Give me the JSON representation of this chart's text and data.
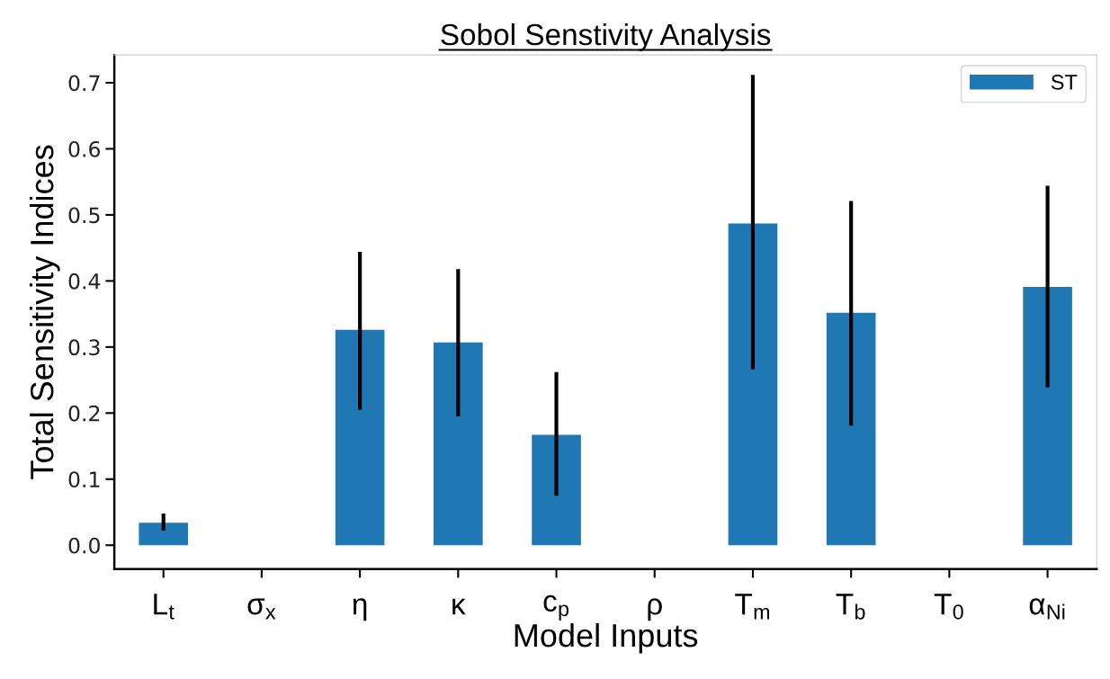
{
  "chart_data": {
    "type": "bar",
    "title": "Sobol Senstivity Analysis",
    "xlabel": "Model Inputs",
    "ylabel": "Total Sensitivity Indices",
    "categories": [
      "L$_{t}$",
      "σ$_{x}$",
      "η",
      "κ",
      "c$_{p}$",
      "ρ",
      "T$_{m}$",
      "T$_{b}$",
      "T$_{0}$",
      "α$_{Ni}$"
    ],
    "series": [
      {
        "name": "ST",
        "color": "#1f77b4",
        "values": [
          0.034,
          0,
          0.326,
          0.307,
          0.167,
          0,
          0.487,
          0.352,
          0,
          0.391
        ],
        "errors": [
          [
            0.022,
            0.048
          ],
          null,
          [
            0.205,
            0.444
          ],
          [
            0.195,
            0.418
          ],
          [
            0.075,
            0.262
          ],
          null,
          [
            0.266,
            0.712
          ],
          [
            0.181,
            0.521
          ],
          null,
          [
            0.239,
            0.544
          ]
        ]
      }
    ],
    "ylim": [
      -0.036,
      0.742
    ],
    "yticks": [
      {
        "value": 0,
        "label": "0.0"
      },
      {
        "value": 0.1,
        "label": "0.1"
      },
      {
        "value": 0.2,
        "label": "0.2"
      },
      {
        "value": 0.3,
        "label": "0.3"
      },
      {
        "value": 0.4,
        "label": "0.4"
      },
      {
        "value": 0.5,
        "label": "0.5"
      },
      {
        "value": 0.6,
        "label": "0.6"
      },
      {
        "value": 0.7,
        "label": "0.7"
      }
    ],
    "grid": false,
    "legend": "top right"
  }
}
